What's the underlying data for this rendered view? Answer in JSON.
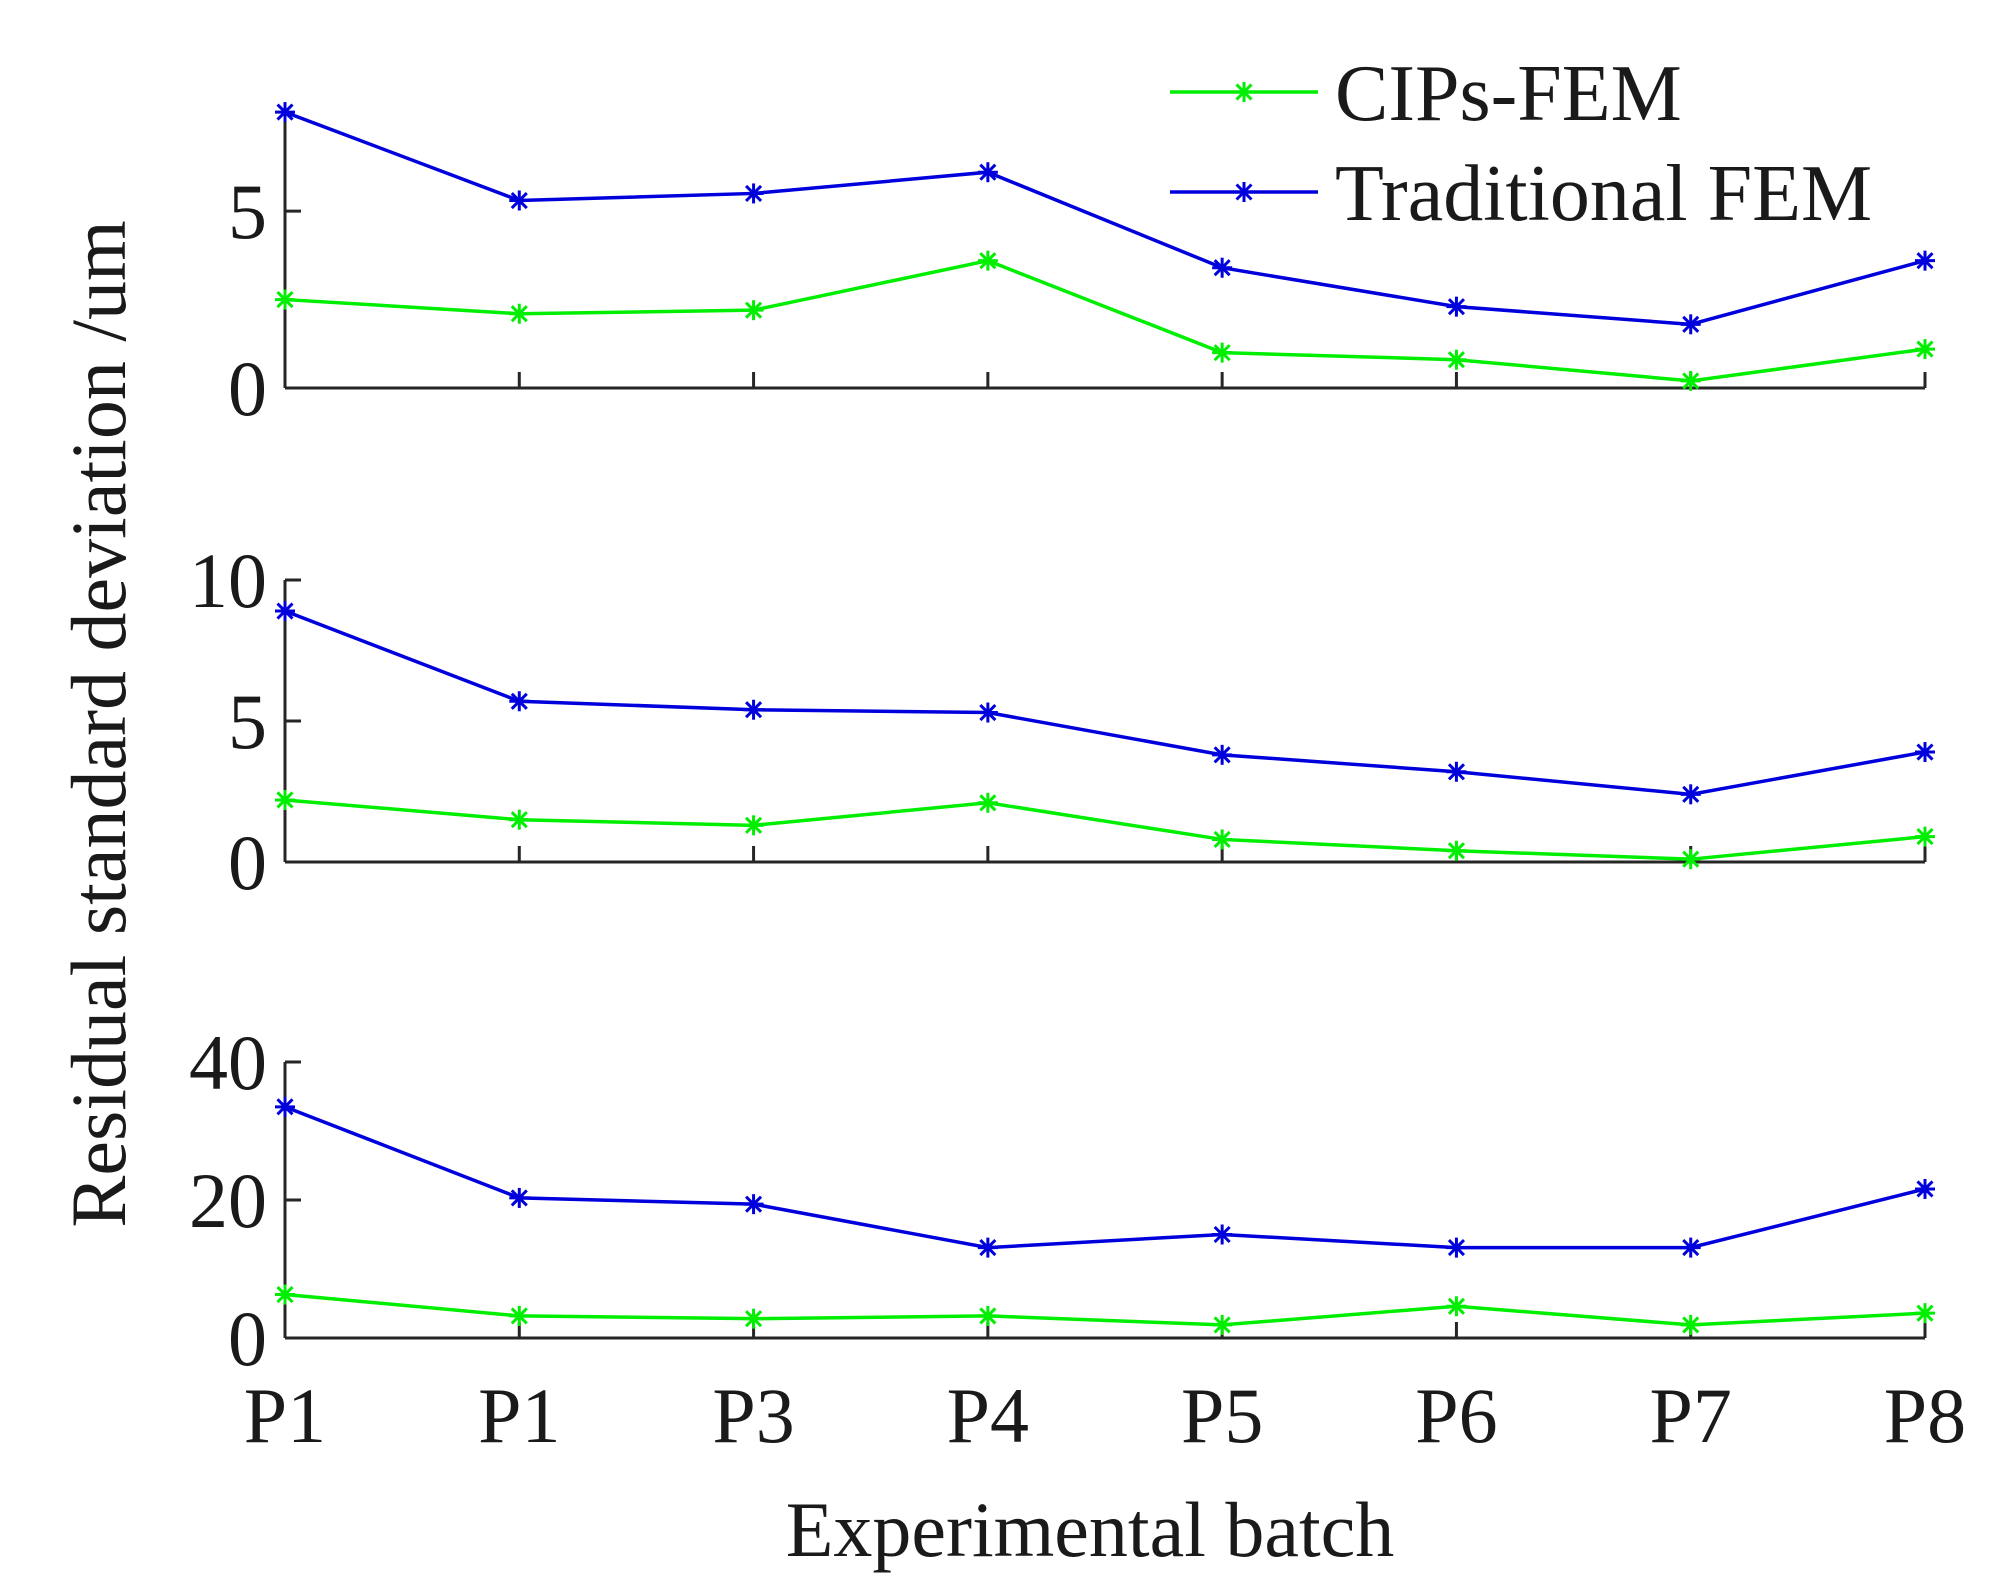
{
  "chart_data": {
    "type": "line",
    "ylabel": "Residual standard deviation /um",
    "xlabel": "Experimental batch",
    "categories": [
      "P1",
      "P1",
      "P3",
      "P4",
      "P5",
      "P6",
      "P7",
      "P8"
    ],
    "legend": {
      "placement": "top-right",
      "entries": [
        "CIPs-FEM",
        "Traditional FEM"
      ]
    },
    "colors": {
      "CIPs-FEM": "#00ee00",
      "Traditional FEM": "#0000dd"
    },
    "marker": "asterisk",
    "panels": [
      {
        "ylim": [
          0,
          8
        ],
        "yticks": [
          0,
          5
        ],
        "ytick_labels": [
          "0",
          "5"
        ],
        "series": [
          {
            "name": "CIPs-FEM",
            "values": [
              2.5,
              2.1,
              2.2,
              3.6,
              1.0,
              0.8,
              0.2,
              1.1
            ]
          },
          {
            "name": "Traditional FEM",
            "values": [
              7.8,
              5.3,
              5.5,
              6.1,
              3.4,
              2.3,
              1.8,
              3.6
            ]
          }
        ]
      },
      {
        "ylim": [
          0,
          10
        ],
        "yticks": [
          0,
          5,
          10
        ],
        "ytick_labels": [
          "0",
          "5",
          "10"
        ],
        "series": [
          {
            "name": "CIPs-FEM",
            "values": [
              2.2,
              1.5,
              1.3,
              2.1,
              0.8,
              0.4,
              0.1,
              0.9
            ]
          },
          {
            "name": "Traditional FEM",
            "values": [
              8.9,
              5.7,
              5.4,
              5.3,
              3.8,
              3.2,
              2.4,
              3.9
            ]
          }
        ]
      },
      {
        "ylim": [
          0,
          40
        ],
        "yticks": [
          0,
          20,
          40
        ],
        "ytick_labels": [
          "0",
          "20",
          "40"
        ],
        "series": [
          {
            "name": "CIPs-FEM",
            "values": [
              6.3,
              3.2,
              2.8,
              3.2,
              1.9,
              4.6,
              1.9,
              3.6
            ]
          },
          {
            "name": "Traditional FEM",
            "values": [
              33.5,
              20.3,
              19.4,
              13.1,
              15.0,
              13.1,
              13.1,
              21.6
            ]
          }
        ]
      }
    ]
  }
}
